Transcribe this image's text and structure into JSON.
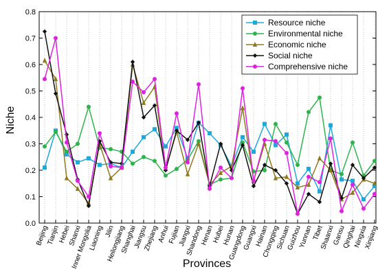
{
  "chart_data": {
    "type": "line",
    "title": "",
    "xlabel": "Provinces",
    "ylabel": "Niche",
    "ylim": [
      0.0,
      0.8
    ],
    "yticks": [
      "0.0",
      "0.1",
      "0.2",
      "0.3",
      "0.4",
      "0.5",
      "0.6",
      "0.7",
      "0.8"
    ],
    "grid": "vertical dotted lines at each province",
    "legend_position": "top-right",
    "categories": [
      "Beijing",
      "Tianjin",
      "Hebei",
      "Shanxi",
      "Inner Mongolia",
      "Liaoning",
      "Jilin",
      "Heilongjiang",
      "Shanghai",
      "Jiangsu",
      "Zhejiang",
      "Anhui",
      "Fujian",
      "Jiangxi",
      "Shandong",
      "Henan",
      "Hubei",
      "Hunan",
      "Guangdong",
      "Guangxi",
      "Hainan",
      "Chongqing",
      "Sichuan",
      "Guizhou",
      "Yunnan",
      "Tibet",
      "Shaanxi",
      "Gansu",
      "Qinghai",
      "Ningxia",
      "Xinjiang"
    ],
    "series": [
      {
        "name": "Resource niche",
        "color": "#1fa8d8",
        "marker": "square",
        "values": [
          0.21,
          0.35,
          0.26,
          0.23,
          0.245,
          0.22,
          0.225,
          0.21,
          0.27,
          0.325,
          0.355,
          0.29,
          0.36,
          0.245,
          0.38,
          0.34,
          0.295,
          0.215,
          0.325,
          0.27,
          0.375,
          0.295,
          0.335,
          0.15,
          0.205,
          0.12,
          0.37,
          0.165,
          0.16,
          0.09,
          0.14
        ]
      },
      {
        "name": "Environmental niche",
        "color": "#2db34a",
        "marker": "circle",
        "values": [
          0.29,
          0.345,
          0.27,
          0.3,
          0.44,
          0.285,
          0.28,
          0.27,
          0.225,
          0.25,
          0.235,
          0.18,
          0.205,
          0.24,
          0.31,
          0.145,
          0.165,
          0.17,
          0.305,
          0.195,
          0.2,
          0.375,
          0.305,
          0.22,
          0.42,
          0.475,
          0.2,
          0.185,
          0.305,
          0.18,
          0.235
        ]
      },
      {
        "name": "Economic niche",
        "color": "#8e7a1e",
        "marker": "triangle",
        "values": [
          0.615,
          0.545,
          0.17,
          0.13,
          0.075,
          0.3,
          0.17,
          0.21,
          0.6,
          0.455,
          0.515,
          0.205,
          0.345,
          0.185,
          0.3,
          0.145,
          0.19,
          0.215,
          0.435,
          0.16,
          0.3,
          0.17,
          0.175,
          0.135,
          0.145,
          0.245,
          0.2,
          0.09,
          0.115,
          0.165,
          0.15
        ]
      },
      {
        "name": "Social niche",
        "color": "#111111",
        "marker": "diamond",
        "values": [
          0.725,
          0.49,
          0.335,
          0.165,
          0.065,
          0.31,
          0.23,
          0.225,
          0.61,
          0.4,
          0.445,
          0.2,
          0.35,
          0.315,
          0.38,
          0.14,
          0.3,
          0.2,
          0.295,
          0.14,
          0.22,
          0.2,
          0.15,
          0.035,
          0.11,
          0.08,
          0.225,
          0.095,
          0.22,
          0.17,
          0.21
        ]
      },
      {
        "name": "Comprehensive niche",
        "color": "#e020e0",
        "marker": "circle",
        "values": [
          0.545,
          0.7,
          0.305,
          0.16,
          0.1,
          0.34,
          0.215,
          0.21,
          0.535,
          0.495,
          0.545,
          0.21,
          0.415,
          0.23,
          0.525,
          0.13,
          0.21,
          0.17,
          0.51,
          0.16,
          0.315,
          0.31,
          0.265,
          0.035,
          0.175,
          0.155,
          0.32,
          0.045,
          0.145,
          0.055,
          0.11
        ]
      }
    ]
  }
}
